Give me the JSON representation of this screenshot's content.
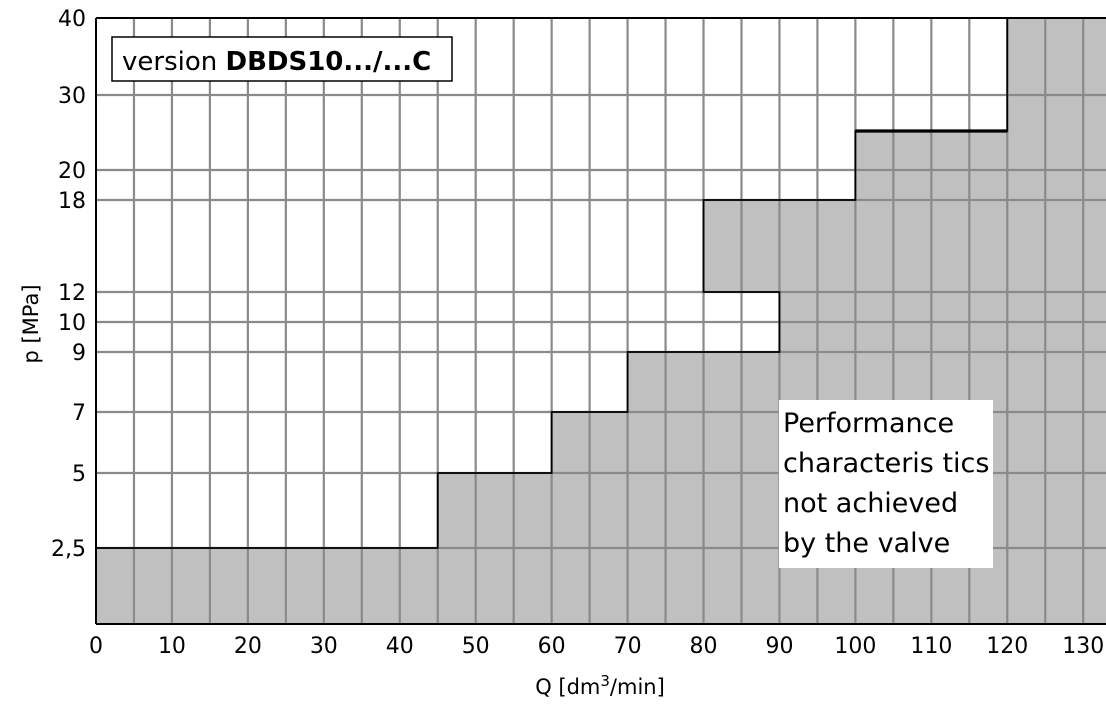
{
  "chart_data": {
    "type": "area",
    "xlabel_prefix": "Q [dm",
    "xlabel_sup": "3",
    "xlabel_suffix": "/min]",
    "ylabel": "p [MPa]",
    "xlim": [
      0,
      133
    ],
    "ylim": [
      0,
      40
    ],
    "x_ticks": [
      "0",
      "10",
      "20",
      "30",
      "40",
      "50",
      "60",
      "70",
      "80",
      "90",
      "100",
      "110",
      "120",
      "130"
    ],
    "y_ticks": [
      "2,5",
      "5",
      "7",
      "9",
      "10",
      "12",
      "18",
      "20",
      "30",
      "40"
    ],
    "version_prefix": "version ",
    "version_bold": "DBDS10.../...C",
    "note_lines": [
      "Performance",
      "characteris tics",
      "not achieved",
      "by the valve"
    ],
    "fill_color": "#c0c0c0",
    "grid_color": "#8a8a8a",
    "grid": true,
    "boundary": [
      {
        "x": 0,
        "y": 2.5
      },
      {
        "x": 45,
        "y": 2.5
      },
      {
        "x": 45,
        "y": 5
      },
      {
        "x": 60,
        "y": 5
      },
      {
        "x": 60,
        "y": 7
      },
      {
        "x": 70,
        "y": 7
      },
      {
        "x": 70,
        "y": 9
      },
      {
        "x": 90,
        "y": 9
      },
      {
        "x": 90,
        "y": 12
      },
      {
        "x": 80,
        "y": 12
      },
      {
        "x": 80,
        "y": 18
      },
      {
        "x": 100,
        "y": 18
      },
      {
        "x": 100,
        "y": 25
      },
      {
        "x": 120,
        "y": 25
      },
      {
        "x": 120,
        "y": 40
      }
    ]
  }
}
